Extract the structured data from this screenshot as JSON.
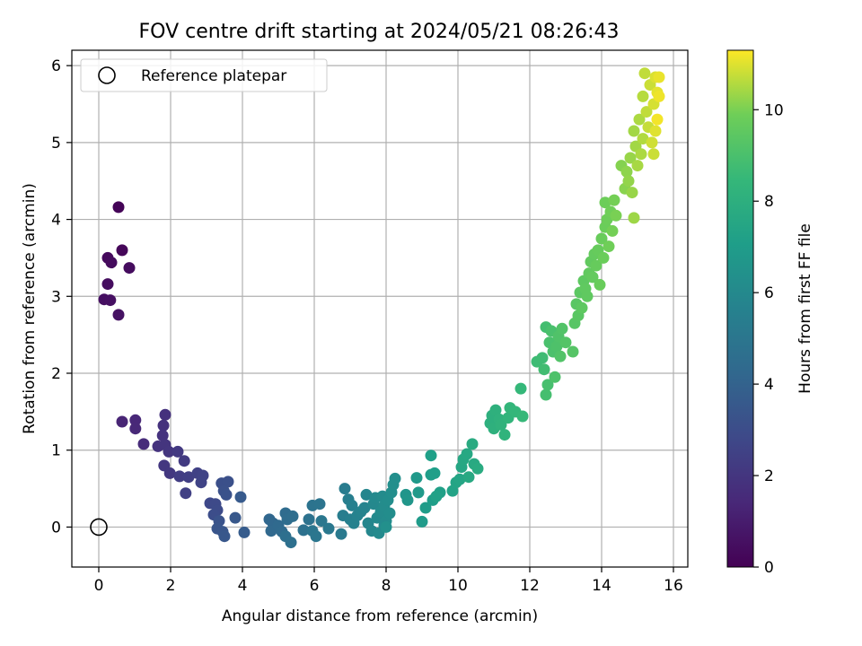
{
  "chart_data": {
    "type": "scatter",
    "title": "FOV centre drift starting at 2024/05/21 08:26:43",
    "xlabel": "Angular distance from reference (arcmin)",
    "ylabel": "Rotation from reference (arcmin)",
    "xlim": [
      -0.75,
      16.4
    ],
    "ylim": [
      -0.52,
      6.2
    ],
    "xticks": [
      0,
      2,
      4,
      6,
      8,
      10,
      12,
      14,
      16
    ],
    "yticks": [
      0,
      1,
      2,
      3,
      4,
      5,
      6
    ],
    "grid": true,
    "legend": {
      "location": "top-left",
      "entries": [
        "Reference platepar"
      ]
    },
    "reference_point": {
      "x": 0,
      "y": 0,
      "label": "Reference platepar"
    },
    "colorbar": {
      "label": "Hours from first FF file",
      "colormap": "viridis",
      "range": [
        0,
        11.3
      ],
      "ticks": [
        0,
        2,
        4,
        6,
        8,
        10
      ]
    },
    "points": [
      {
        "x": 0.55,
        "y": 4.16,
        "t": 0.1
      },
      {
        "x": 0.65,
        "y": 3.6,
        "t": 0.2
      },
      {
        "x": 0.25,
        "y": 3.5,
        "t": 0.3
      },
      {
        "x": 0.35,
        "y": 3.44,
        "t": 0.35
      },
      {
        "x": 0.85,
        "y": 3.37,
        "t": 0.4
      },
      {
        "x": 0.25,
        "y": 3.16,
        "t": 0.45
      },
      {
        "x": 0.15,
        "y": 2.96,
        "t": 0.5
      },
      {
        "x": 0.32,
        "y": 2.95,
        "t": 0.55
      },
      {
        "x": 0.55,
        "y": 2.76,
        "t": 0.6
      },
      {
        "x": 0.65,
        "y": 1.37,
        "t": 1.3
      },
      {
        "x": 1.02,
        "y": 1.39,
        "t": 1.4
      },
      {
        "x": 1.02,
        "y": 1.28,
        "t": 1.45
      },
      {
        "x": 1.25,
        "y": 1.08,
        "t": 1.6
      },
      {
        "x": 1.85,
        "y": 1.46,
        "t": 1.8
      },
      {
        "x": 1.8,
        "y": 1.32,
        "t": 1.85
      },
      {
        "x": 1.78,
        "y": 1.19,
        "t": 1.9
      },
      {
        "x": 1.65,
        "y": 1.05,
        "t": 1.9
      },
      {
        "x": 1.85,
        "y": 1.07,
        "t": 1.95
      },
      {
        "x": 1.95,
        "y": 0.98,
        "t": 2.0
      },
      {
        "x": 1.82,
        "y": 0.8,
        "t": 2.05
      },
      {
        "x": 1.98,
        "y": 0.7,
        "t": 2.1
      },
      {
        "x": 2.2,
        "y": 0.98,
        "t": 2.15
      },
      {
        "x": 2.38,
        "y": 0.86,
        "t": 2.2
      },
      {
        "x": 2.25,
        "y": 0.66,
        "t": 2.3
      },
      {
        "x": 2.5,
        "y": 0.65,
        "t": 2.4
      },
      {
        "x": 2.42,
        "y": 0.44,
        "t": 2.45
      },
      {
        "x": 2.75,
        "y": 0.7,
        "t": 2.5
      },
      {
        "x": 2.9,
        "y": 0.67,
        "t": 2.55
      },
      {
        "x": 2.85,
        "y": 0.58,
        "t": 2.6
      },
      {
        "x": 3.1,
        "y": 0.31,
        "t": 2.8
      },
      {
        "x": 3.25,
        "y": 0.3,
        "t": 2.85
      },
      {
        "x": 3.3,
        "y": 0.22,
        "t": 2.9
      },
      {
        "x": 3.2,
        "y": 0.16,
        "t": 3.0
      },
      {
        "x": 3.42,
        "y": 0.57,
        "t": 3.1
      },
      {
        "x": 3.6,
        "y": 0.59,
        "t": 3.15
      },
      {
        "x": 3.48,
        "y": 0.47,
        "t": 3.2
      },
      {
        "x": 3.55,
        "y": 0.42,
        "t": 3.25
      },
      {
        "x": 3.35,
        "y": 0.08,
        "t": 3.3
      },
      {
        "x": 3.3,
        "y": -0.02,
        "t": 3.35
      },
      {
        "x": 3.45,
        "y": -0.06,
        "t": 3.4
      },
      {
        "x": 3.5,
        "y": -0.12,
        "t": 3.45
      },
      {
        "x": 3.8,
        "y": 0.12,
        "t": 3.5
      },
      {
        "x": 3.95,
        "y": 0.39,
        "t": 3.6
      },
      {
        "x": 4.05,
        "y": -0.07,
        "t": 3.7
      },
      {
        "x": 4.75,
        "y": 0.1,
        "t": 4.2
      },
      {
        "x": 4.85,
        "y": 0.05,
        "t": 4.25
      },
      {
        "x": 4.8,
        "y": -0.05,
        "t": 4.3
      },
      {
        "x": 5.0,
        "y": 0.02,
        "t": 4.35
      },
      {
        "x": 5.1,
        "y": -0.06,
        "t": 4.4
      },
      {
        "x": 5.2,
        "y": 0.18,
        "t": 4.45
      },
      {
        "x": 5.25,
        "y": 0.1,
        "t": 4.5
      },
      {
        "x": 5.4,
        "y": 0.14,
        "t": 4.55
      },
      {
        "x": 5.2,
        "y": -0.12,
        "t": 4.6
      },
      {
        "x": 5.35,
        "y": -0.2,
        "t": 4.65
      },
      {
        "x": 5.7,
        "y": -0.04,
        "t": 4.75
      },
      {
        "x": 5.85,
        "y": 0.1,
        "t": 4.8
      },
      {
        "x": 5.95,
        "y": 0.28,
        "t": 4.85
      },
      {
        "x": 6.15,
        "y": 0.3,
        "t": 4.9
      },
      {
        "x": 5.95,
        "y": -0.05,
        "t": 4.95
      },
      {
        "x": 6.05,
        "y": -0.12,
        "t": 5.0
      },
      {
        "x": 6.2,
        "y": 0.08,
        "t": 5.05
      },
      {
        "x": 6.4,
        "y": -0.02,
        "t": 5.1
      },
      {
        "x": 6.75,
        "y": -0.09,
        "t": 5.2
      },
      {
        "x": 6.85,
        "y": 0.5,
        "t": 5.3
      },
      {
        "x": 6.8,
        "y": 0.15,
        "t": 5.4
      },
      {
        "x": 6.95,
        "y": 0.36,
        "t": 5.45
      },
      {
        "x": 7.0,
        "y": 0.1,
        "t": 5.5
      },
      {
        "x": 7.05,
        "y": 0.28,
        "t": 5.55
      },
      {
        "x": 7.1,
        "y": 0.05,
        "t": 5.6
      },
      {
        "x": 7.2,
        "y": 0.15,
        "t": 5.65
      },
      {
        "x": 7.3,
        "y": 0.2,
        "t": 5.7
      },
      {
        "x": 7.4,
        "y": 0.25,
        "t": 5.75
      },
      {
        "x": 7.45,
        "y": 0.42,
        "t": 5.8
      },
      {
        "x": 7.5,
        "y": 0.05,
        "t": 5.85
      },
      {
        "x": 7.6,
        "y": -0.05,
        "t": 5.9
      },
      {
        "x": 7.65,
        "y": 0.3,
        "t": 5.95
      },
      {
        "x": 7.7,
        "y": 0.38,
        "t": 6.0
      },
      {
        "x": 7.75,
        "y": 0.12,
        "t": 6.0
      },
      {
        "x": 7.8,
        "y": -0.08,
        "t": 6.05
      },
      {
        "x": 7.85,
        "y": 0.2,
        "t": 6.1
      },
      {
        "x": 7.9,
        "y": 0.4,
        "t": 6.1
      },
      {
        "x": 7.95,
        "y": 0.28,
        "t": 6.15
      },
      {
        "x": 8.0,
        "y": 0.08,
        "t": 6.15
      },
      {
        "x": 8.05,
        "y": 0.35,
        "t": 6.2
      },
      {
        "x": 8.1,
        "y": 0.18,
        "t": 6.2
      },
      {
        "x": 8.15,
        "y": 0.45,
        "t": 6.25
      },
      {
        "x": 8.2,
        "y": 0.55,
        "t": 6.3
      },
      {
        "x": 8.25,
        "y": 0.63,
        "t": 6.3
      },
      {
        "x": 7.95,
        "y": 0.02,
        "t": 6.05
      },
      {
        "x": 8.0,
        "y": 0.0,
        "t": 6.35
      },
      {
        "x": 8.55,
        "y": 0.42,
        "t": 6.6
      },
      {
        "x": 8.6,
        "y": 0.35,
        "t": 6.65
      },
      {
        "x": 8.85,
        "y": 0.64,
        "t": 6.8
      },
      {
        "x": 8.9,
        "y": 0.45,
        "t": 6.85
      },
      {
        "x": 9.0,
        "y": 0.07,
        "t": 6.9
      },
      {
        "x": 9.1,
        "y": 0.25,
        "t": 6.95
      },
      {
        "x": 9.25,
        "y": 0.68,
        "t": 7.0
      },
      {
        "x": 9.3,
        "y": 0.35,
        "t": 7.05
      },
      {
        "x": 9.35,
        "y": 0.7,
        "t": 7.1
      },
      {
        "x": 9.25,
        "y": 0.93,
        "t": 7.15
      },
      {
        "x": 9.5,
        "y": 0.45,
        "t": 7.2
      },
      {
        "x": 9.4,
        "y": 0.4,
        "t": 7.25
      },
      {
        "x": 9.85,
        "y": 0.47,
        "t": 7.35
      },
      {
        "x": 9.95,
        "y": 0.58,
        "t": 7.4
      },
      {
        "x": 10.05,
        "y": 0.62,
        "t": 7.45
      },
      {
        "x": 10.1,
        "y": 0.78,
        "t": 7.5
      },
      {
        "x": 10.15,
        "y": 0.88,
        "t": 7.55
      },
      {
        "x": 10.25,
        "y": 0.95,
        "t": 7.6
      },
      {
        "x": 10.3,
        "y": 0.65,
        "t": 7.65
      },
      {
        "x": 10.45,
        "y": 0.82,
        "t": 7.7
      },
      {
        "x": 10.4,
        "y": 1.08,
        "t": 7.75
      },
      {
        "x": 10.55,
        "y": 0.76,
        "t": 7.8
      },
      {
        "x": 10.9,
        "y": 1.35,
        "t": 8.0
      },
      {
        "x": 10.95,
        "y": 1.45,
        "t": 8.05
      },
      {
        "x": 11.05,
        "y": 1.52,
        "t": 8.1
      },
      {
        "x": 11.0,
        "y": 1.28,
        "t": 8.1
      },
      {
        "x": 11.15,
        "y": 1.4,
        "t": 8.15
      },
      {
        "x": 11.2,
        "y": 1.33,
        "t": 8.2
      },
      {
        "x": 11.3,
        "y": 1.2,
        "t": 8.25
      },
      {
        "x": 11.4,
        "y": 1.42,
        "t": 8.3
      },
      {
        "x": 11.45,
        "y": 1.55,
        "t": 8.35
      },
      {
        "x": 11.6,
        "y": 1.5,
        "t": 8.4
      },
      {
        "x": 11.75,
        "y": 1.8,
        "t": 8.45
      },
      {
        "x": 11.8,
        "y": 1.44,
        "t": 8.5
      },
      {
        "x": 12.2,
        "y": 2.15,
        "t": 8.7
      },
      {
        "x": 12.35,
        "y": 2.2,
        "t": 8.75
      },
      {
        "x": 12.4,
        "y": 2.05,
        "t": 8.8
      },
      {
        "x": 12.45,
        "y": 2.6,
        "t": 8.85
      },
      {
        "x": 12.45,
        "y": 1.72,
        "t": 8.9
      },
      {
        "x": 12.5,
        "y": 1.85,
        "t": 8.95
      },
      {
        "x": 12.55,
        "y": 2.4,
        "t": 9.0
      },
      {
        "x": 12.6,
        "y": 2.55,
        "t": 9.0
      },
      {
        "x": 12.65,
        "y": 2.28,
        "t": 9.05
      },
      {
        "x": 12.7,
        "y": 1.95,
        "t": 9.1
      },
      {
        "x": 12.75,
        "y": 2.35,
        "t": 9.1
      },
      {
        "x": 12.8,
        "y": 2.48,
        "t": 9.15
      },
      {
        "x": 12.85,
        "y": 2.22,
        "t": 9.2
      },
      {
        "x": 12.9,
        "y": 2.58,
        "t": 9.2
      },
      {
        "x": 13.0,
        "y": 2.4,
        "t": 9.25
      },
      {
        "x": 13.2,
        "y": 2.28,
        "t": 9.3
      },
      {
        "x": 13.25,
        "y": 2.65,
        "t": 9.35
      },
      {
        "x": 13.3,
        "y": 2.9,
        "t": 9.4
      },
      {
        "x": 13.35,
        "y": 2.75,
        "t": 9.4
      },
      {
        "x": 13.4,
        "y": 3.05,
        "t": 9.45
      },
      {
        "x": 13.45,
        "y": 2.85,
        "t": 9.5
      },
      {
        "x": 13.5,
        "y": 3.2,
        "t": 9.5
      },
      {
        "x": 13.55,
        "y": 3.1,
        "t": 9.55
      },
      {
        "x": 13.6,
        "y": 3.0,
        "t": 9.55
      },
      {
        "x": 13.65,
        "y": 3.3,
        "t": 9.6
      },
      {
        "x": 13.7,
        "y": 3.45,
        "t": 9.6
      },
      {
        "x": 13.75,
        "y": 3.25,
        "t": 9.65
      },
      {
        "x": 13.8,
        "y": 3.55,
        "t": 9.65
      },
      {
        "x": 13.85,
        "y": 3.4,
        "t": 9.7
      },
      {
        "x": 13.9,
        "y": 3.6,
        "t": 9.7
      },
      {
        "x": 13.95,
        "y": 3.15,
        "t": 9.75
      },
      {
        "x": 14.0,
        "y": 3.75,
        "t": 9.75
      },
      {
        "x": 14.05,
        "y": 3.5,
        "t": 9.8
      },
      {
        "x": 14.1,
        "y": 3.9,
        "t": 9.8
      },
      {
        "x": 14.1,
        "y": 4.22,
        "t": 9.85
      },
      {
        "x": 14.15,
        "y": 4.0,
        "t": 9.85
      },
      {
        "x": 14.2,
        "y": 3.65,
        "t": 9.9
      },
      {
        "x": 14.25,
        "y": 4.1,
        "t": 9.9
      },
      {
        "x": 14.3,
        "y": 3.85,
        "t": 9.95
      },
      {
        "x": 14.35,
        "y": 4.25,
        "t": 9.95
      },
      {
        "x": 14.4,
        "y": 4.05,
        "t": 10.0
      },
      {
        "x": 14.55,
        "y": 4.7,
        "t": 10.1
      },
      {
        "x": 14.65,
        "y": 4.4,
        "t": 10.15
      },
      {
        "x": 14.7,
        "y": 4.62,
        "t": 10.2
      },
      {
        "x": 14.75,
        "y": 4.5,
        "t": 10.25
      },
      {
        "x": 14.8,
        "y": 4.8,
        "t": 10.3
      },
      {
        "x": 14.85,
        "y": 4.35,
        "t": 10.3
      },
      {
        "x": 14.9,
        "y": 4.02,
        "t": 10.35
      },
      {
        "x": 14.9,
        "y": 5.15,
        "t": 10.4
      },
      {
        "x": 14.95,
        "y": 4.95,
        "t": 10.4
      },
      {
        "x": 15.0,
        "y": 4.7,
        "t": 10.45
      },
      {
        "x": 15.05,
        "y": 5.3,
        "t": 10.5
      },
      {
        "x": 15.1,
        "y": 4.85,
        "t": 10.5
      },
      {
        "x": 15.15,
        "y": 5.05,
        "t": 10.55
      },
      {
        "x": 15.15,
        "y": 5.6,
        "t": 10.6
      },
      {
        "x": 15.2,
        "y": 5.9,
        "t": 10.7
      },
      {
        "x": 15.25,
        "y": 5.4,
        "t": 10.7
      },
      {
        "x": 15.3,
        "y": 5.2,
        "t": 10.75
      },
      {
        "x": 15.35,
        "y": 5.75,
        "t": 10.8
      },
      {
        "x": 15.4,
        "y": 5.0,
        "t": 10.85
      },
      {
        "x": 15.45,
        "y": 5.5,
        "t": 10.9
      },
      {
        "x": 15.5,
        "y": 5.85,
        "t": 10.95
      },
      {
        "x": 15.5,
        "y": 5.15,
        "t": 11.0
      },
      {
        "x": 15.55,
        "y": 5.65,
        "t": 11.05
      },
      {
        "x": 15.6,
        "y": 5.85,
        "t": 11.1
      },
      {
        "x": 15.6,
        "y": 5.6,
        "t": 11.15
      },
      {
        "x": 15.55,
        "y": 5.3,
        "t": 11.2
      },
      {
        "x": 15.45,
        "y": 4.85,
        "t": 10.8
      }
    ]
  }
}
